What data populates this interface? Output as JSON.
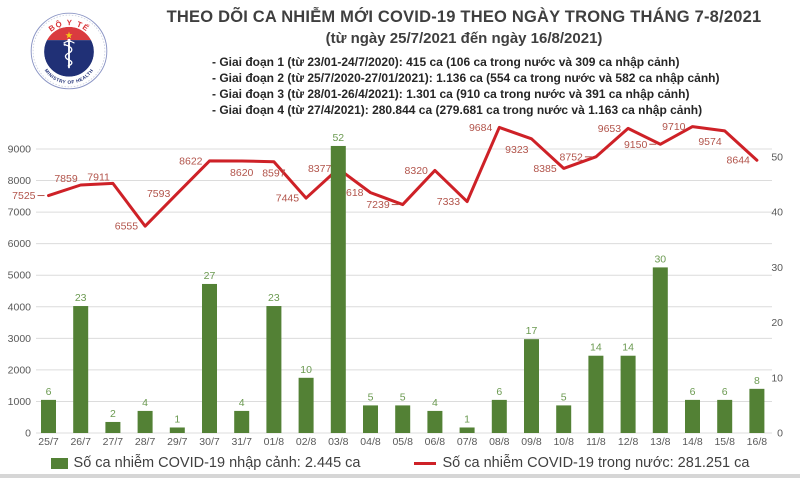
{
  "logo": {
    "top_text": "BỘ Y TẾ",
    "bottom_text": "MINISTRY OF HEALTH"
  },
  "header": {
    "title": "THEO DÕI CA NHIỄM MỚI COVID-19 THEO NGÀY TRONG THÁNG 7-8/2021",
    "subtitle": "(từ ngày 25/7/2021 đến ngày 16/8/2021)",
    "bullets": [
      "- Giai đoạn 1 (từ 23/01-24/7/2020): 415 ca (106 ca trong nước và 309 ca nhập cảnh)",
      "- Giai đoạn 2 (từ 25/7/2020-27/01/2021): 1.136 ca (554 ca trong nước và 582 ca nhập cảnh)",
      "- Giai đoạn 3 (từ 28/01-26/4/2021): 1.301 ca (910 ca trong nước và 391 ca nhập cảnh)",
      "- Giai đoạn 4 (từ 27/4/2021): 280.844 ca (279.681 ca trong nước và 1.163 ca nhập cảnh)"
    ]
  },
  "chart_data": {
    "type": "bar",
    "subtype": "bar+line combo, dual axis",
    "categories": [
      "25/7",
      "26/7",
      "27/7",
      "28/7",
      "29/7",
      "30/7",
      "31/7",
      "01/8",
      "02/8",
      "03/8",
      "04/8",
      "05/8",
      "06/8",
      "07/8",
      "08/8",
      "09/8",
      "10/8",
      "11/8",
      "12/8",
      "13/8",
      "14/8",
      "15/8",
      "16/8"
    ],
    "series": [
      {
        "name": "Số ca nhiễm COVID-19 nhập cảnh",
        "type": "bar",
        "axis": "right",
        "color": "#538135",
        "label_color": "#6b9a51",
        "values": [
          6,
          23,
          2,
          4,
          1,
          27,
          4,
          23,
          10,
          52,
          5,
          5,
          4,
          1,
          6,
          17,
          5,
          14,
          14,
          30,
          6,
          6,
          8
        ]
      },
      {
        "name": "Số ca nhiễm COVID-19 trong nước",
        "type": "line",
        "axis": "left",
        "color": "#ce2127",
        "label_color": "#b2544b",
        "values": [
          7525,
          7859,
          7911,
          6555,
          7593,
          8622,
          8620,
          8597,
          7445,
          8377,
          7618,
          7239,
          8320,
          7333,
          9684,
          9323,
          8385,
          8752,
          9653,
          9150,
          9710,
          9574,
          8644
        ]
      }
    ],
    "left_axis": {
      "min": 0,
      "max": 9000,
      "tick_step": 1000,
      "ticks": [
        0,
        1000,
        2000,
        3000,
        4000,
        5000,
        6000,
        7000,
        8000,
        9000
      ]
    },
    "right_axis": {
      "min": 0,
      "max": 50,
      "tick_step": 10,
      "ticks": [
        0,
        10,
        20,
        30,
        40,
        50
      ]
    },
    "grid": "horizontal",
    "legend_position": "bottom",
    "style": {
      "axis_text_color": "#595959",
      "grid_color": "#dcdcdc"
    },
    "layout": {
      "label_placement": [
        "l",
        "al",
        "al",
        "l",
        "l",
        "l",
        "b",
        "b",
        "l",
        "l",
        "l",
        "l",
        "l",
        "l",
        "l",
        "bl",
        "l",
        "l",
        "l",
        "l",
        "l",
        "bl",
        "l"
      ],
      "leader_indices": [
        0,
        11,
        17,
        19
      ]
    }
  },
  "legend": {
    "bar_label": "Số ca nhiễm COVID-19 nhập cảnh: 2.445 ca",
    "line_label": "Số ca nhiễm COVID-19 trong nước: 281.251 ca"
  }
}
